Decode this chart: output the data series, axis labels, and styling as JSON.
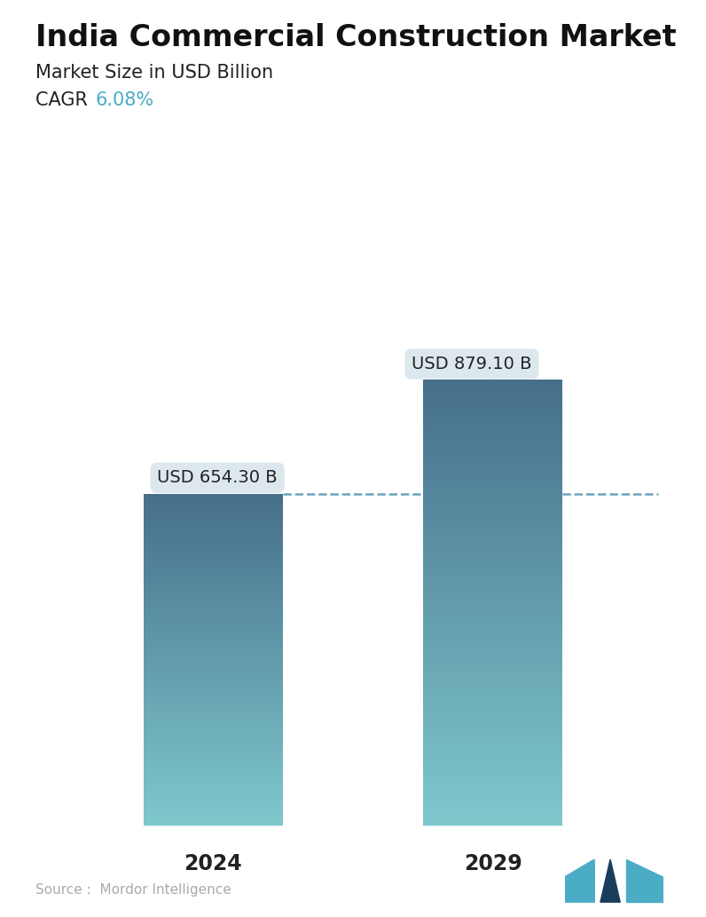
{
  "title": "India Commercial Construction Market",
  "subtitle": "Market Size in USD Billion",
  "cagr_label": "CAGR",
  "cagr_value": "6.08%",
  "cagr_color": "#4bacc6",
  "categories": [
    "2024",
    "2029"
  ],
  "values": [
    654.3,
    879.1
  ],
  "labels": [
    "USD 654.30 B",
    "USD 879.10 B"
  ],
  "bar_top_color": "#466e8a",
  "bar_bottom_color": "#7ec8cc",
  "dashed_line_color": "#5a9ab5",
  "label_bg_color": "#dce8ee",
  "source_text": "Source :  Mordor Intelligence",
  "source_color": "#aaaaaa",
  "background_color": "#ffffff",
  "title_fontsize": 24,
  "subtitle_fontsize": 15,
  "cagr_fontsize": 15,
  "label_fontsize": 14,
  "xtick_fontsize": 17,
  "ylim": [
    0,
    1050
  ],
  "bar_positions": [
    0.28,
    0.72
  ],
  "bar_width": 0.22
}
